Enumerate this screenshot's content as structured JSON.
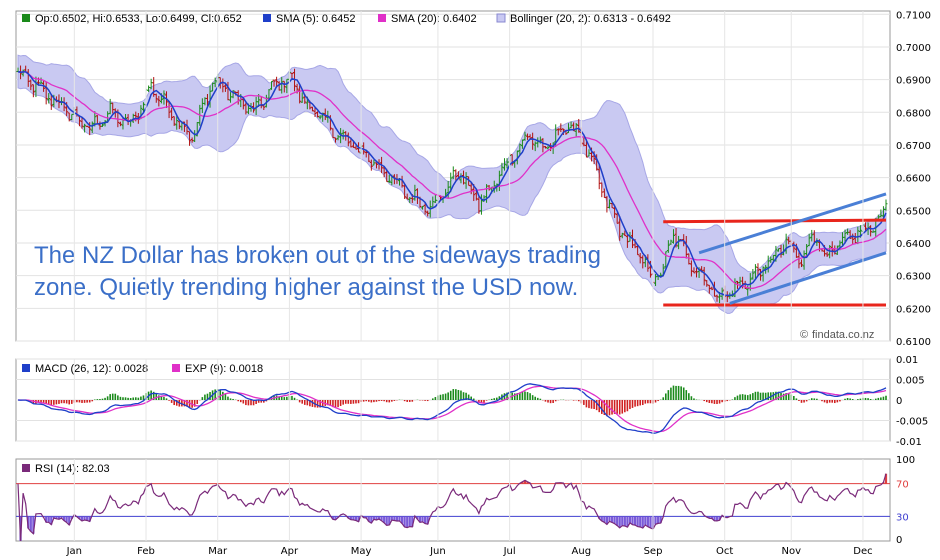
{
  "chart_data": {
    "type": "line",
    "currency_pair": "NZD/USD",
    "credit": "findata.co.nz",
    "annotation": [
      "The NZ Dollar has broken out of the sideways trading",
      "zone. Quietly trending higher against the USD now."
    ],
    "months": [
      "Jan",
      "Feb",
      "Mar",
      "Apr",
      "May",
      "Jun",
      "Jul",
      "Aug",
      "Sep",
      "Oct",
      "Nov",
      "Dec"
    ],
    "price_panel": {
      "legend": {
        "ohlc": "Op:0.6502, Hi:0.6533, Lo:0.6499, Cl:0.652",
        "sma5": "SMA (5): 0.6452",
        "sma20": "SMA (20): 0.6402",
        "bollinger": "Bollinger (20, 2): 0.6313 - 0.6492"
      },
      "ylim": [
        0.61,
        0.711
      ],
      "yticks": [
        "0.7100",
        "0.7000",
        "0.6900",
        "0.6800",
        "0.6700",
        "0.6600",
        "0.6500",
        "0.6400",
        "0.6300",
        "0.6200",
        "0.6100"
      ],
      "close_anchors": [
        [
          0,
          0.692
        ],
        [
          10,
          0.686
        ],
        [
          20,
          0.68
        ],
        [
          28,
          0.675
        ],
        [
          36,
          0.68
        ],
        [
          44,
          0.676
        ],
        [
          52,
          0.688
        ],
        [
          60,
          0.68
        ],
        [
          68,
          0.672
        ],
        [
          76,
          0.69
        ],
        [
          84,
          0.685
        ],
        [
          92,
          0.68
        ],
        [
          100,
          0.688
        ],
        [
          106,
          0.691
        ],
        [
          112,
          0.683
        ],
        [
          120,
          0.677
        ],
        [
          128,
          0.671
        ],
        [
          136,
          0.667
        ],
        [
          144,
          0.661
        ],
        [
          152,
          0.655
        ],
        [
          160,
          0.651
        ],
        [
          166,
          0.655
        ],
        [
          172,
          0.662
        ],
        [
          180,
          0.652
        ],
        [
          186,
          0.658
        ],
        [
          192,
          0.666
        ],
        [
          200,
          0.673
        ],
        [
          206,
          0.668
        ],
        [
          212,
          0.675
        ],
        [
          218,
          0.675
        ],
        [
          224,
          0.665
        ],
        [
          230,
          0.652
        ],
        [
          236,
          0.643
        ],
        [
          242,
          0.637
        ],
        [
          248,
          0.629
        ],
        [
          252,
          0.632
        ],
        [
          256,
          0.643
        ],
        [
          262,
          0.635
        ],
        [
          268,
          0.629
        ],
        [
          274,
          0.623
        ],
        [
          280,
          0.626
        ],
        [
          286,
          0.629
        ],
        [
          292,
          0.633
        ],
        [
          300,
          0.64
        ],
        [
          306,
          0.634
        ],
        [
          310,
          0.643
        ],
        [
          316,
          0.636
        ],
        [
          322,
          0.64
        ],
        [
          328,
          0.643
        ],
        [
          332,
          0.644
        ],
        [
          336,
          0.648
        ]
      ],
      "sma5_last": 0.6452,
      "sma20_last": 0.6402,
      "bollinger_last": [
        0.6313,
        0.6492
      ],
      "trend_lines": {
        "resistance": [
          [
            0.6465,
            0.647
          ]
        ],
        "support": [
          [
            0.621,
            0.621
          ]
        ],
        "channel_upper": [
          0.637,
          0.655
        ],
        "channel_lower": [
          0.6215,
          0.637
        ]
      },
      "colors": {
        "up": "#1a8a1a",
        "down": "#b01010",
        "sma5": "#1f3fc9",
        "sma20": "#e030c8",
        "band_fill": "#c9c9f2",
        "band_stroke": "#a7a7e6",
        "horizontal_line": "#e8251c",
        "channel_line": "#4a7fd6"
      }
    },
    "macd_panel": {
      "legend": {
        "macd": "MACD (26, 12): 0.0028",
        "exp": "EXP (9): 0.0018"
      },
      "ylim": [
        -0.01,
        0.01
      ],
      "yticks": [
        "0.01",
        "0.005",
        "0",
        "-0.005",
        "-0.01"
      ],
      "macd_last": 0.0028,
      "exp_last": 0.0018,
      "colors": {
        "macd": "#1f3fc9",
        "exp": "#e030c8",
        "hist_pos": "#1a8a1a",
        "hist_neg": "#d02020"
      }
    },
    "rsi_panel": {
      "legend": {
        "rsi": "RSI (14): 82.03"
      },
      "ylim": [
        0,
        100
      ],
      "yticks": [
        "100",
        "70",
        "30",
        "0"
      ],
      "levels": [
        70,
        30
      ],
      "rsi_last": 82.03,
      "colors": {
        "rsi": "#7a2a7a",
        "overbought": "#e04040",
        "oversold": "#4040d0",
        "fill": "#7a5ad8"
      }
    }
  }
}
